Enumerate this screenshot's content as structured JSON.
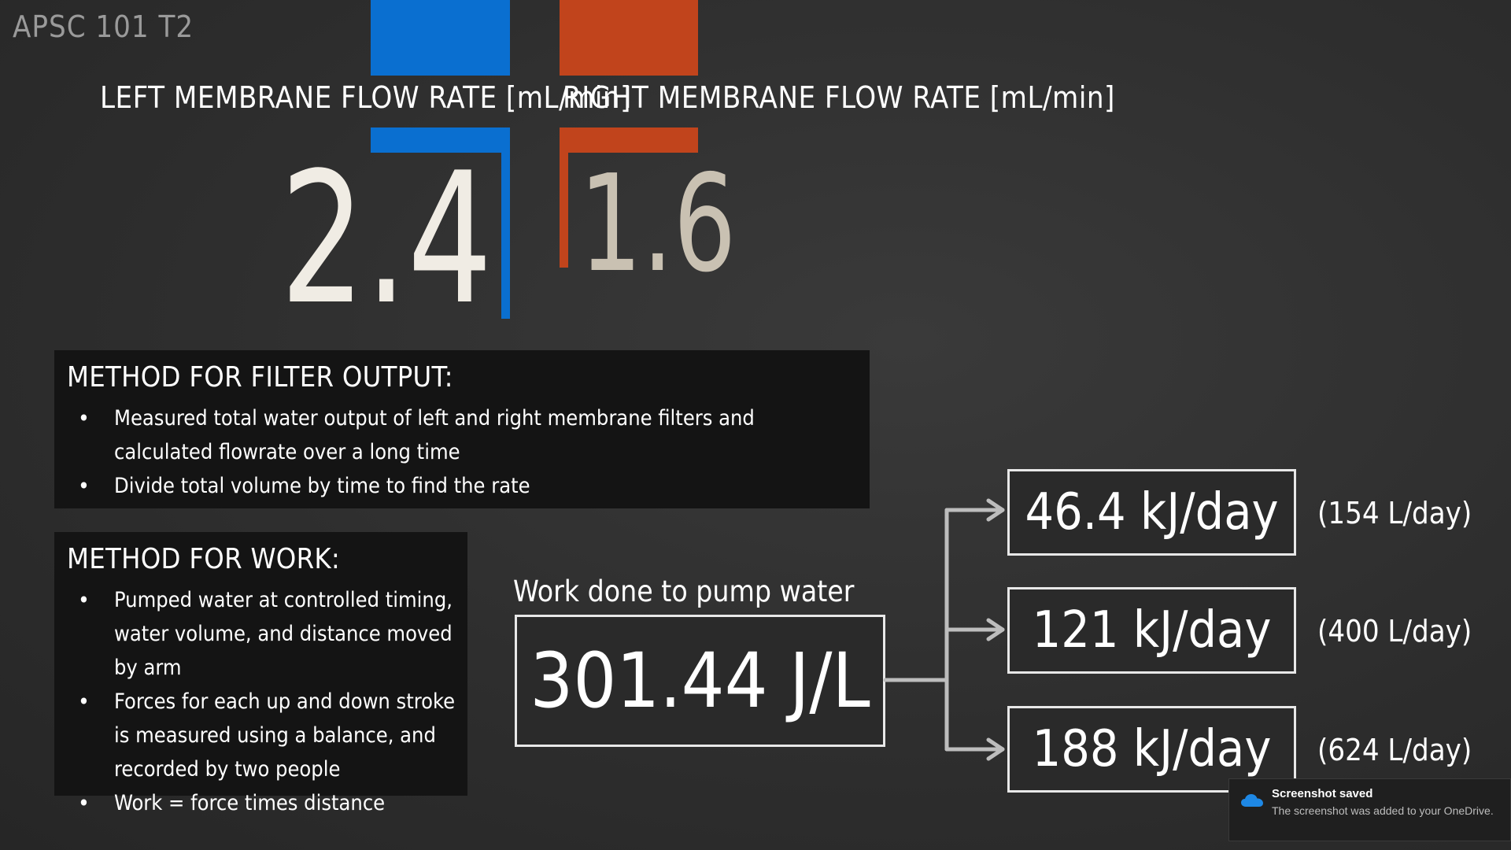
{
  "slide": {
    "title": "APSC 101 T2"
  },
  "flow": {
    "left_label": "LEFT MEMBRANE FLOW RATE [mL/min]",
    "left_value": "2.4",
    "right_label": "RIGHT MEMBRANE FLOW RATE [mL/min]",
    "right_value": "1.6",
    "left_color": "#0a6fd0",
    "right_color": "#c1441c"
  },
  "filter_method": {
    "heading": "METHOD FOR FILTER OUTPUT:",
    "bullets": [
      "Measured total water output of left and right membrane filters and calculated flowrate over a long time",
      "Divide total volume by time to find the rate"
    ]
  },
  "work_method": {
    "heading": "METHOD FOR WORK:",
    "bullets": [
      "Pumped water at controlled timing, water volume, and distance moved by arm",
      "Forces for each up and down stroke is measured using a balance, and recorded by two people",
      "Work = force times distance"
    ]
  },
  "work": {
    "title": "Work done to pump water",
    "value": "301.44 J/L",
    "outputs": [
      {
        "value": "46.4 kJ/day",
        "note": "(154 L/day)"
      },
      {
        "value": "121 kJ/day",
        "note": "(400 L/day)"
      },
      {
        "value": "188 kJ/day",
        "note": "(624 L/day)"
      }
    ]
  },
  "toast": {
    "icon": "onedrive-cloud-icon",
    "title": "Screenshot saved",
    "body": "The screenshot was added to your OneDrive."
  }
}
